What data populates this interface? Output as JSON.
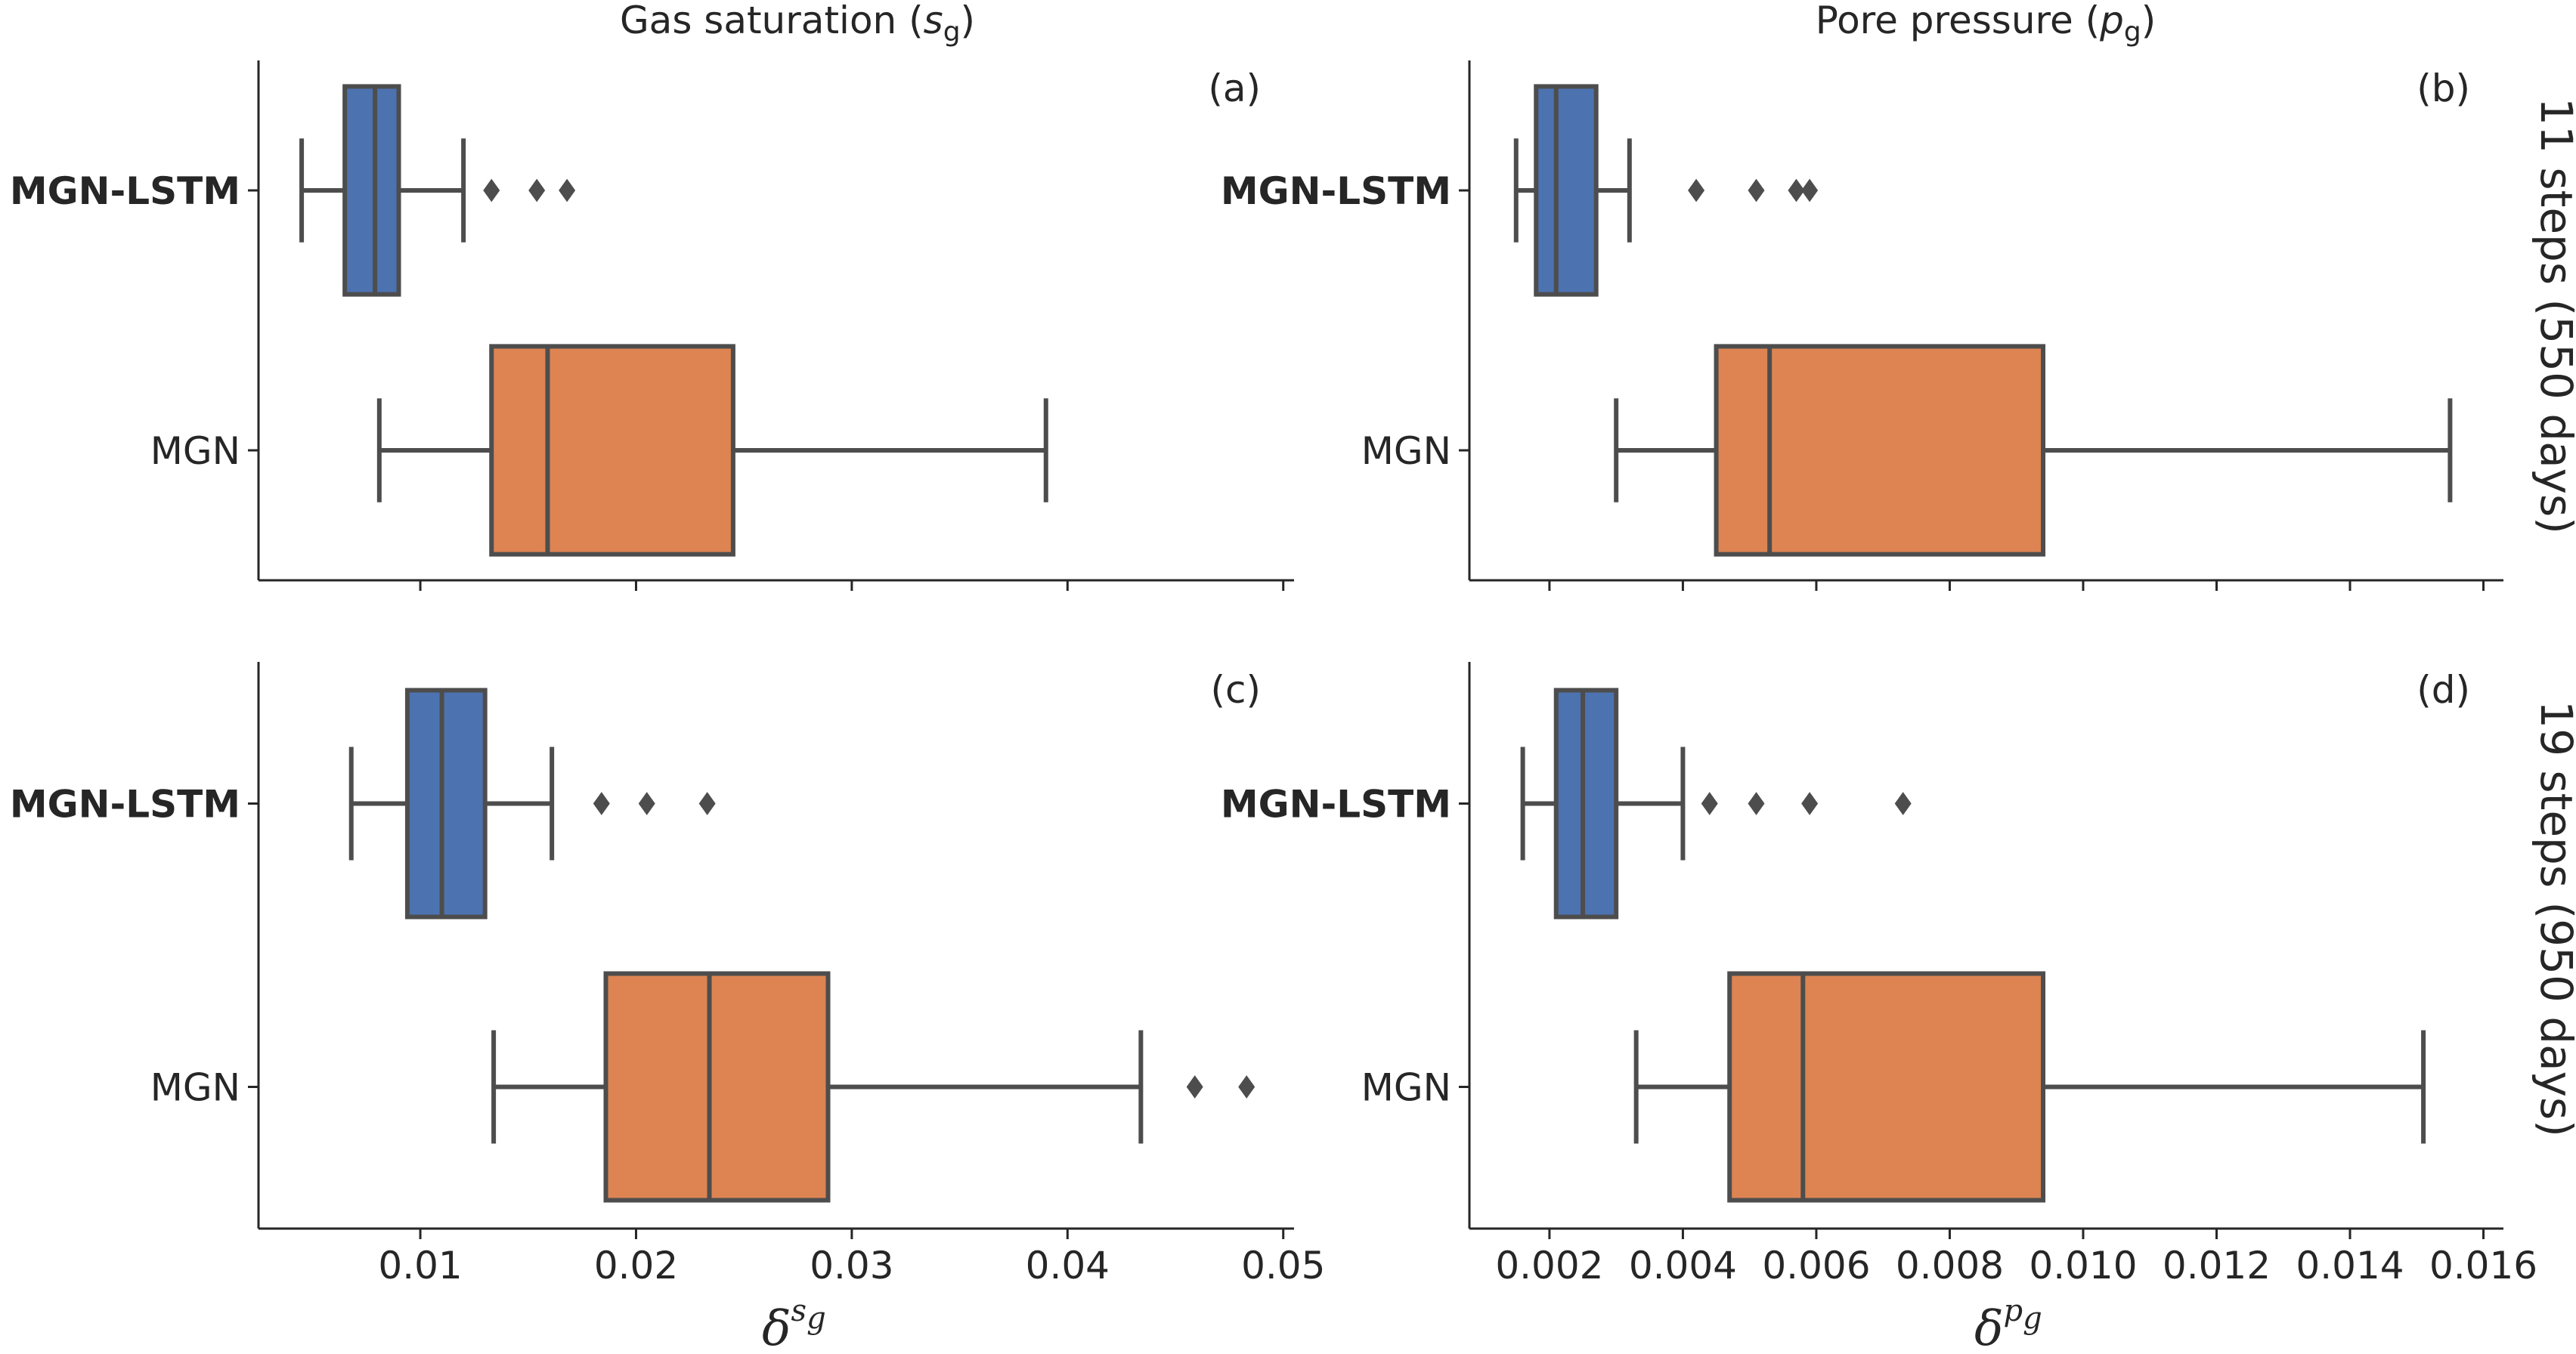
{
  "chart_data": [
    {
      "type": "box",
      "panel_label": "(a)",
      "title": "Gas saturation (s_g)",
      "xlabel": "δ^{s_g}",
      "xlim": [
        0.0025,
        0.0505
      ],
      "xticks": [
        0.01,
        0.02,
        0.03,
        0.04,
        0.05
      ],
      "xtick_labels": [
        "0.01",
        "0.02",
        "0.03",
        "0.04",
        "0.05"
      ],
      "categories": [
        "MGN-LSTM",
        "MGN"
      ],
      "series": [
        {
          "name": "MGN-LSTM",
          "color": "#4c72b0",
          "whisker_low": 0.0045,
          "q1": 0.0065,
          "median": 0.0079,
          "q3": 0.009,
          "whisker_high": 0.012,
          "outliers": [
            0.0133,
            0.0154,
            0.0168
          ]
        },
        {
          "name": "MGN",
          "color": "#dd8452",
          "whisker_low": 0.0081,
          "q1": 0.0133,
          "median": 0.0159,
          "q3": 0.0245,
          "whisker_high": 0.039,
          "outliers": []
        }
      ]
    },
    {
      "type": "box",
      "panel_label": "(b)",
      "title": "Pore pressure (p_g)",
      "xlabel": "δ^{p_g}",
      "xlim": [
        0.0008,
        0.0163
      ],
      "xticks": [
        0.002,
        0.004,
        0.006,
        0.008,
        0.01,
        0.012,
        0.014,
        0.016
      ],
      "xtick_labels": [
        "0.002",
        "0.004",
        "0.006",
        "0.008",
        "0.010",
        "0.012",
        "0.014",
        "0.016"
      ],
      "categories": [
        "MGN-LSTM",
        "MGN"
      ],
      "series": [
        {
          "name": "MGN-LSTM",
          "color": "#4c72b0",
          "whisker_low": 0.0015,
          "q1": 0.0018,
          "median": 0.0021,
          "q3": 0.0027,
          "whisker_high": 0.0032,
          "outliers": [
            0.0042,
            0.0051,
            0.0057,
            0.0059
          ]
        },
        {
          "name": "MGN",
          "color": "#dd8452",
          "whisker_low": 0.003,
          "q1": 0.0045,
          "median": 0.0053,
          "q3": 0.0094,
          "whisker_high": 0.0155,
          "outliers": []
        }
      ]
    },
    {
      "type": "box",
      "panel_label": "(c)",
      "title": "Gas saturation (s_g)",
      "xlabel": "δ^{s_g}",
      "xlim": [
        0.0025,
        0.0505
      ],
      "xticks": [
        0.01,
        0.02,
        0.03,
        0.04,
        0.05
      ],
      "xtick_labels": [
        "0.01",
        "0.02",
        "0.03",
        "0.04",
        "0.05"
      ],
      "categories": [
        "MGN-LSTM",
        "MGN"
      ],
      "series": [
        {
          "name": "MGN-LSTM",
          "color": "#4c72b0",
          "whisker_low": 0.0068,
          "q1": 0.0094,
          "median": 0.011,
          "q3": 0.013,
          "whisker_high": 0.0161,
          "outliers": [
            0.0184,
            0.0205,
            0.0233
          ]
        },
        {
          "name": "MGN",
          "color": "#dd8452",
          "whisker_low": 0.0134,
          "q1": 0.0186,
          "median": 0.0234,
          "q3": 0.0289,
          "whisker_high": 0.0434,
          "outliers": [
            0.0459,
            0.0483
          ]
        }
      ]
    },
    {
      "type": "box",
      "panel_label": "(d)",
      "title": "Pore pressure (p_g)",
      "xlabel": "δ^{p_g}",
      "xlim": [
        0.0008,
        0.0163
      ],
      "xticks": [
        0.002,
        0.004,
        0.006,
        0.008,
        0.01,
        0.012,
        0.014,
        0.016
      ],
      "xtick_labels": [
        "0.002",
        "0.004",
        "0.006",
        "0.008",
        "0.010",
        "0.012",
        "0.014",
        "0.016"
      ],
      "categories": [
        "MGN-LSTM",
        "MGN"
      ],
      "series": [
        {
          "name": "MGN-LSTM",
          "color": "#4c72b0",
          "whisker_low": 0.0016,
          "q1": 0.0021,
          "median": 0.0025,
          "q3": 0.003,
          "whisker_high": 0.004,
          "outliers": [
            0.0044,
            0.0051,
            0.0059,
            0.0073
          ]
        },
        {
          "name": "MGN",
          "color": "#dd8452",
          "whisker_low": 0.0033,
          "q1": 0.0047,
          "median": 0.0058,
          "q3": 0.0094,
          "whisker_high": 0.0151,
          "outliers": []
        }
      ]
    }
  ],
  "column_titles": [
    {
      "text": "Gas saturation (",
      "var": "s",
      "sub": "g",
      "close": ")"
    },
    {
      "text": "Pore pressure (",
      "var": "p",
      "sub": "g",
      "close": ")"
    }
  ],
  "row_titles": [
    "11 steps (550 days)",
    "19 steps (950 days)"
  ],
  "x_axis_labels": [
    {
      "base": "δ",
      "sup": "s",
      "sup_sub": "g"
    },
    {
      "base": "δ",
      "sup": "p",
      "sup_sub": "g"
    }
  ],
  "colors": {
    "box_edge": "#4d4d4d",
    "axis": "#262626",
    "mgn_lstm": "#4c72b0",
    "mgn": "#dd8452"
  }
}
